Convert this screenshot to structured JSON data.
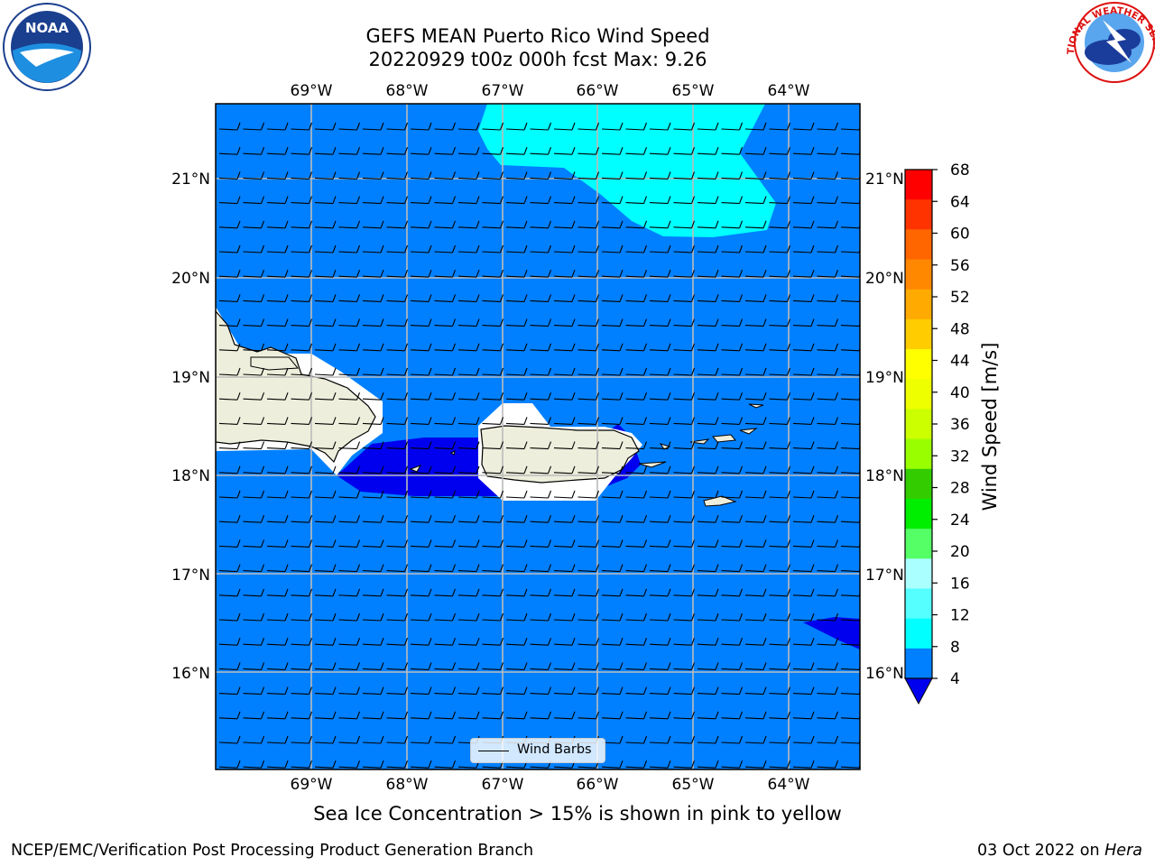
{
  "title": {
    "line1": "GEFS MEAN Puerto Rico Wind Speed",
    "line2": "20220929 t00z 000h fcst   Max: 9.26"
  },
  "map": {
    "lon_labels": [
      "69°W",
      "68°W",
      "67°W",
      "66°W",
      "65°W",
      "64°W"
    ],
    "lat_labels": [
      "21°N",
      "20°N",
      "19°N",
      "18°N",
      "17°N",
      "16°N"
    ],
    "legend_label": "Wind Barbs",
    "fill_colors": {
      "land": "#eeeedc",
      "mask": "#ffffff",
      "speed_4_8": "#0080ff",
      "speed_8_12": "#00ffff",
      "speed_below_4": "#0000ee"
    }
  },
  "colorbar": {
    "title": "Wind Speed [m/s]",
    "ticks": [
      "68",
      "64",
      "60",
      "56",
      "52",
      "48",
      "44",
      "40",
      "36",
      "32",
      "28",
      "24",
      "20",
      "16",
      "12",
      "8",
      "4"
    ],
    "colors": [
      "#ff0000",
      "#ff3300",
      "#ff6600",
      "#ff8800",
      "#ffaa00",
      "#ffcc00",
      "#ffff00",
      "#eeff00",
      "#ccff00",
      "#99ff00",
      "#33cc00",
      "#00ee00",
      "#55ff66",
      "#aaffff",
      "#55ffff",
      "#00ffff",
      "#0080ff"
    ],
    "extend_color": "#0000ee"
  },
  "caption": "Sea Ice Concentration > 15% is shown in pink to yellow",
  "footer": {
    "left": "NCEP/EMC/Verification Post Processing Product Generation Branch",
    "right_date": "03 Oct 2022 on ",
    "right_machine": "Hera"
  },
  "logos": {
    "noaa": "NOAA",
    "nws": "NATIONAL WEATHER SERVICE"
  }
}
